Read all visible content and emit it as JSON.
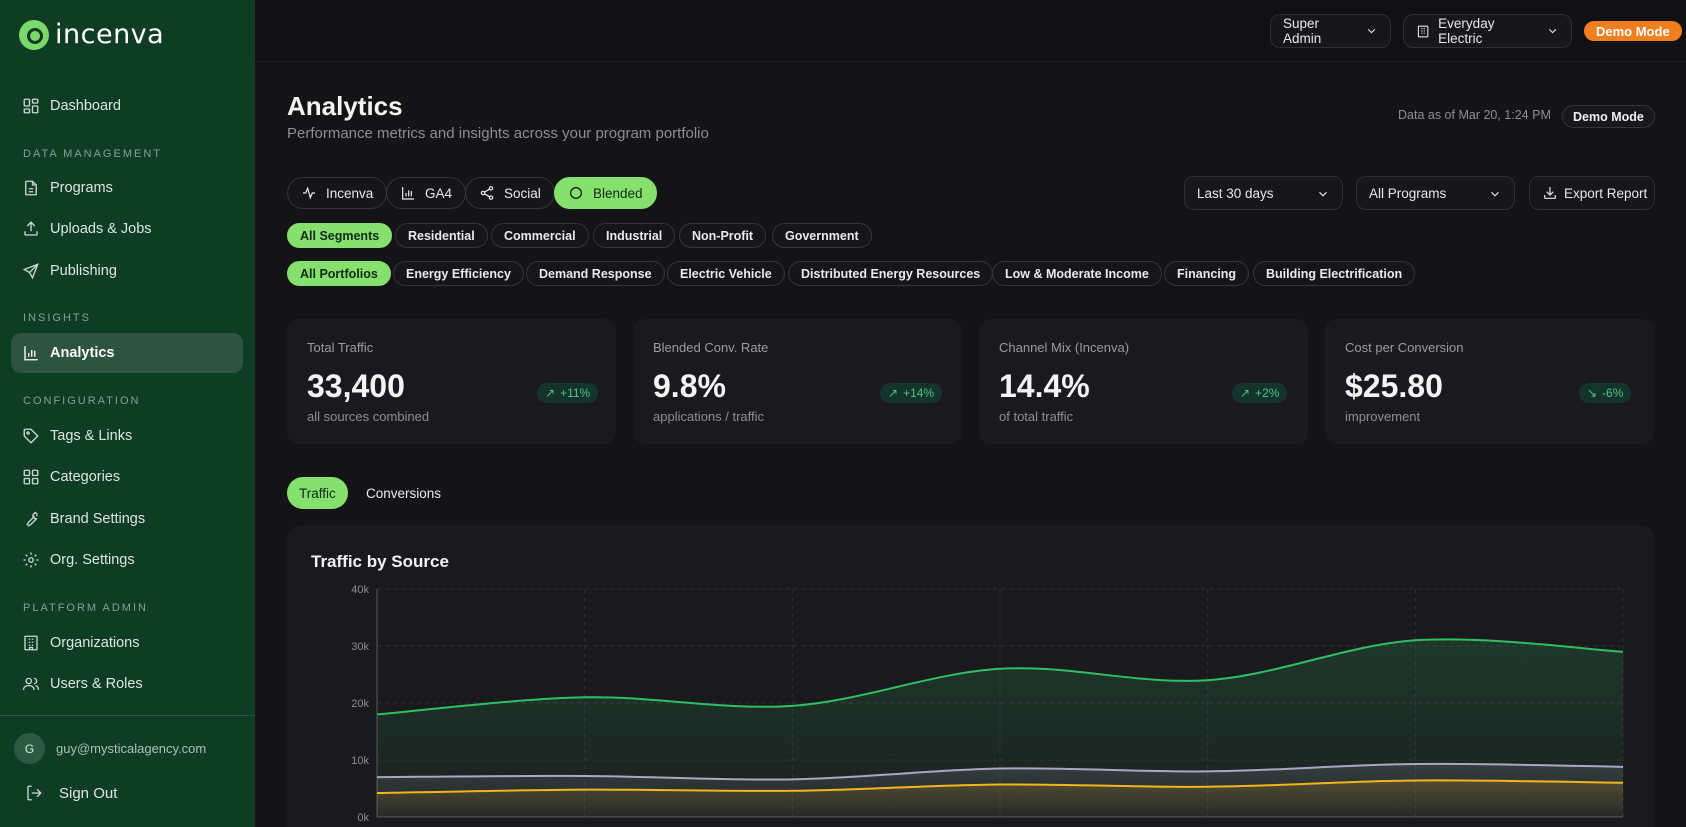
{
  "brand": {
    "name": "incenva"
  },
  "sidebar": {
    "dashboard": "Dashboard",
    "sections": {
      "data_management": "DATA MANAGEMENT",
      "insights": "INSIGHTS",
      "configuration": "CONFIGURATION",
      "platform_admin": "PLATFORM ADMIN"
    },
    "items": {
      "programs": "Programs",
      "uploads": "Uploads & Jobs",
      "publishing": "Publishing",
      "analytics": "Analytics",
      "tags": "Tags & Links",
      "categories": "Categories",
      "brand_settings": "Brand Settings",
      "org_settings": "Org. Settings",
      "organizations": "Organizations",
      "users_roles": "Users & Roles"
    },
    "user": {
      "initial": "G",
      "email": "guy@mysticalagency.com"
    },
    "sign_out": "Sign Out"
  },
  "topbar": {
    "role": "Super Admin",
    "org": "Everyday Electric",
    "demo": "Demo Mode"
  },
  "header": {
    "title": "Analytics",
    "subtitle": "Performance metrics and insights across your program portfolio",
    "data_as_of": "Data as of Mar 20, 1:24 PM",
    "demo_chip": "Demo Mode"
  },
  "sources": [
    "Incenva",
    "GA4",
    "Social",
    "Blended"
  ],
  "filters": {
    "range": "Last 30 days",
    "programs": "All Programs",
    "export": "Export Report"
  },
  "segments": [
    "All Segments",
    "Residential",
    "Commercial",
    "Industrial",
    "Non-Profit",
    "Government"
  ],
  "portfolios": [
    "All Portfolios",
    "Energy Efficiency",
    "Demand Response",
    "Electric Vehicle",
    "Distributed Energy Resources",
    "Low & Moderate Income",
    "Financing",
    "Building Electrification"
  ],
  "kpis": [
    {
      "label": "Total Traffic",
      "value": "33,400",
      "sub": "all sources combined",
      "delta": "+11%",
      "direction": "up"
    },
    {
      "label": "Blended Conv. Rate",
      "value": "9.8%",
      "sub": "applications / traffic",
      "delta": "+14%",
      "direction": "up"
    },
    {
      "label": "Channel Mix (Incenva)",
      "value": "14.4%",
      "sub": "of total traffic",
      "delta": "+2%",
      "direction": "up"
    },
    {
      "label": "Cost per Conversion",
      "value": "$25.80",
      "sub": "improvement",
      "delta": "-6%",
      "direction": "down"
    }
  ],
  "tabs": [
    "Traffic",
    "Conversions"
  ],
  "chart_data": {
    "type": "area",
    "title": "Traffic by Source",
    "ylim": [
      0,
      40000
    ],
    "yticks": [
      "0k",
      "10k",
      "20k",
      "30k",
      "40k"
    ],
    "grid": true,
    "series": [
      {
        "color": "#2fbf63",
        "values": [
          18000,
          21000,
          19500,
          26000,
          24000,
          31000,
          29000
        ]
      },
      {
        "color": "#a7a9c0",
        "values": [
          7000,
          7200,
          6600,
          8500,
          8000,
          9300,
          8800
        ]
      },
      {
        "color": "#f2b51c",
        "values": [
          4200,
          4800,
          4600,
          5700,
          5300,
          6400,
          6000
        ]
      }
    ]
  }
}
